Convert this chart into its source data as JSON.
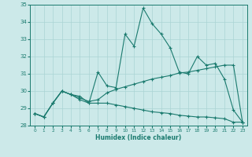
{
  "xlabel": "Humidex (Indice chaleur)",
  "xlim": [
    -0.5,
    23.5
  ],
  "ylim": [
    28,
    35
  ],
  "yticks": [
    28,
    29,
    30,
    31,
    32,
    33,
    34,
    35
  ],
  "xticks": [
    0,
    1,
    2,
    3,
    4,
    5,
    6,
    7,
    8,
    9,
    10,
    11,
    12,
    13,
    14,
    15,
    16,
    17,
    18,
    19,
    20,
    21,
    22,
    23
  ],
  "line_color": "#1a7a6e",
  "bg_color": "#cce9e9",
  "grid_color": "#aad4d4",
  "line1_y": [
    28.7,
    28.5,
    29.3,
    30.0,
    29.8,
    29.7,
    29.3,
    31.1,
    30.3,
    30.2,
    33.3,
    32.6,
    34.8,
    33.9,
    33.3,
    32.5,
    31.1,
    31.0,
    32.0,
    31.5,
    31.6,
    30.7,
    28.9,
    28.2
  ],
  "line2_y": [
    28.7,
    28.5,
    29.3,
    30.0,
    29.8,
    29.6,
    29.4,
    29.5,
    29.9,
    30.1,
    30.25,
    30.4,
    30.55,
    30.7,
    30.8,
    30.9,
    31.05,
    31.1,
    31.2,
    31.3,
    31.4,
    31.5,
    31.5,
    28.2
  ],
  "line3_y": [
    28.7,
    28.5,
    29.3,
    30.0,
    29.8,
    29.5,
    29.3,
    29.3,
    29.3,
    29.2,
    29.1,
    29.0,
    28.9,
    28.8,
    28.75,
    28.7,
    28.6,
    28.55,
    28.5,
    28.5,
    28.45,
    28.4,
    28.2,
    28.2
  ]
}
